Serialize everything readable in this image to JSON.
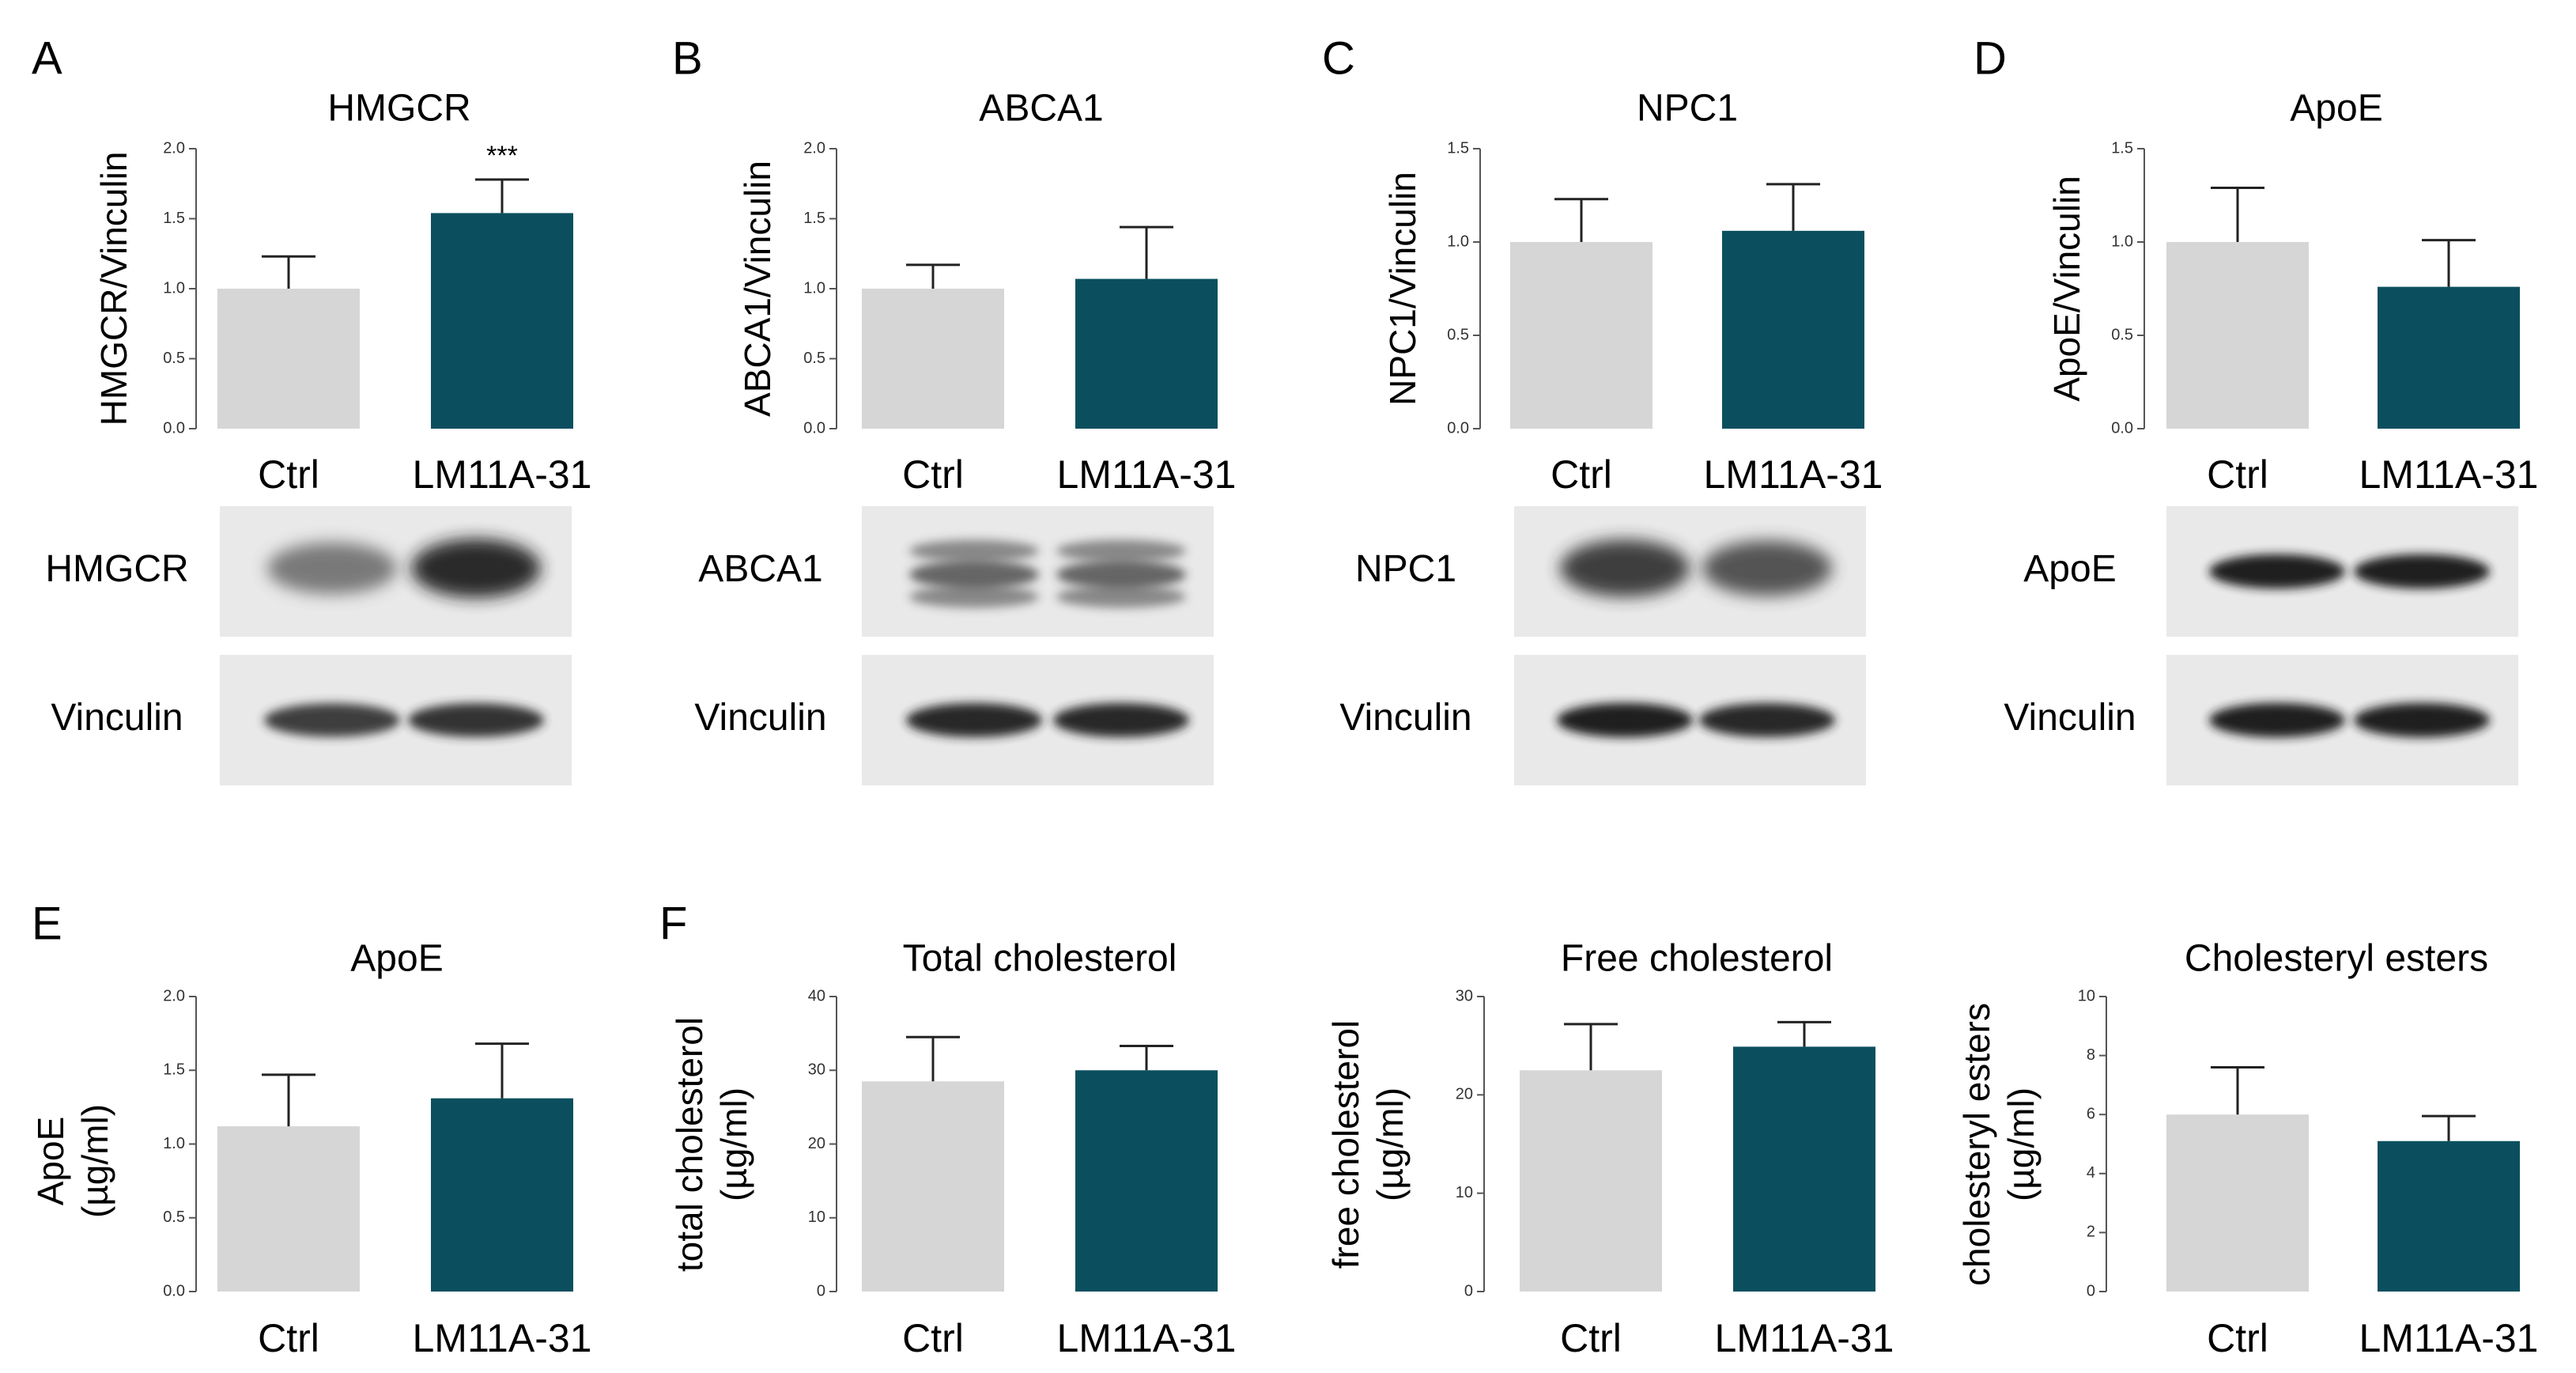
{
  "colors": {
    "ctrl": "#d6d6d6",
    "treated": "#0b4f5f",
    "axis": "#555555",
    "text": "#111111"
  },
  "chart_data": [
    {
      "panel": "A",
      "type": "bar",
      "title": "HMGCR",
      "ylabel_lines": [
        "HMGCR/Vinculin"
      ],
      "categories": [
        "Ctrl",
        "LM11A-31"
      ],
      "values": [
        1.0,
        1.54
      ],
      "errors": [
        0.23,
        0.24
      ],
      "ylim": [
        0,
        2.0
      ],
      "yticks": [
        "0.0",
        "0.5",
        "1.0",
        "1.5",
        "2.0"
      ],
      "significance": [
        "",
        "***"
      ]
    },
    {
      "panel": "B",
      "type": "bar",
      "title": "ABCA1",
      "ylabel_lines": [
        "ABCA1/Vinculin"
      ],
      "categories": [
        "Ctrl",
        "LM11A-31"
      ],
      "values": [
        1.0,
        1.07
      ],
      "errors": [
        0.17,
        0.37
      ],
      "ylim": [
        0,
        2.0
      ],
      "yticks": [
        "0.0",
        "0.5",
        "1.0",
        "1.5",
        "2.0"
      ]
    },
    {
      "panel": "C",
      "type": "bar",
      "title": "NPC1",
      "ylabel_lines": [
        "NPC1/Vinculin"
      ],
      "categories": [
        "Ctrl",
        "LM11A-31"
      ],
      "values": [
        1.0,
        1.06
      ],
      "errors": [
        0.23,
        0.25
      ],
      "ylim": [
        0,
        1.5
      ],
      "yticks": [
        "0.0",
        "0.5",
        "1.0",
        "1.5"
      ]
    },
    {
      "panel": "D",
      "type": "bar",
      "title": "ApoE",
      "ylabel_lines": [
        "ApoE/Vinculin"
      ],
      "categories": [
        "Ctrl",
        "LM11A-31"
      ],
      "values": [
        1.0,
        0.76
      ],
      "errors": [
        0.29,
        0.25
      ],
      "ylim": [
        0,
        1.5
      ],
      "yticks": [
        "0.0",
        "0.5",
        "1.0",
        "1.5"
      ]
    },
    {
      "panel": "E",
      "type": "bar",
      "title": "ApoE",
      "ylabel_lines": [
        "ApoE",
        "(µg/ml)"
      ],
      "categories": [
        "Ctrl",
        "LM11A-31"
      ],
      "values": [
        1.12,
        1.31
      ],
      "errors": [
        0.35,
        0.37
      ],
      "ylim": [
        0,
        2.0
      ],
      "yticks": [
        "0.0",
        "0.5",
        "1.0",
        "1.5",
        "2.0"
      ]
    },
    {
      "panel": "F",
      "type": "bar",
      "title": "Total cholesterol",
      "ylabel_lines": [
        "total cholesterol",
        "(µg/ml)"
      ],
      "categories": [
        "Ctrl",
        "LM11A-31"
      ],
      "values": [
        28.5,
        30.0
      ],
      "errors": [
        6.0,
        3.3
      ],
      "ylim": [
        0,
        40
      ],
      "yticks": [
        "0",
        "10",
        "20",
        "30",
        "40"
      ]
    },
    {
      "panel": "",
      "type": "bar",
      "title": "Free cholesterol",
      "ylabel_lines": [
        "free cholesterol",
        "(µg/ml)"
      ],
      "categories": [
        "Ctrl",
        "LM11A-31"
      ],
      "values": [
        22.5,
        24.9
      ],
      "errors": [
        4.7,
        2.5
      ],
      "ylim": [
        0,
        30
      ],
      "yticks": [
        "0",
        "10",
        "20",
        "30"
      ]
    },
    {
      "panel": "",
      "type": "bar",
      "title": "Cholesteryl esters",
      "ylabel_lines": [
        "cholesteryl esters",
        "(µg/ml)"
      ],
      "categories": [
        "Ctrl",
        "LM11A-31"
      ],
      "values": [
        6.0,
        5.1
      ],
      "errors": [
        1.6,
        0.85
      ],
      "ylim": [
        0,
        10
      ],
      "yticks": [
        "0",
        "2",
        "4",
        "6",
        "8",
        "10"
      ]
    }
  ],
  "blots": [
    {
      "panel": "A",
      "rows": [
        {
          "label": "HMGCR",
          "band": "diffuse",
          "intensities": [
            0.55,
            0.95
          ]
        },
        {
          "label": "Vinculin",
          "band": "band",
          "intensities": [
            0.8,
            0.85
          ]
        }
      ]
    },
    {
      "panel": "B",
      "rows": [
        {
          "label": "ABCA1",
          "band": "smear",
          "intensities": [
            0.75,
            0.75
          ]
        },
        {
          "label": "Vinculin",
          "band": "band",
          "intensities": [
            0.9,
            0.9
          ]
        }
      ]
    },
    {
      "panel": "C",
      "rows": [
        {
          "label": "NPC1",
          "band": "diffuse",
          "intensities": [
            0.85,
            0.75
          ]
        },
        {
          "label": "Vinculin",
          "band": "band",
          "intensities": [
            0.95,
            0.9
          ]
        }
      ]
    },
    {
      "panel": "D",
      "rows": [
        {
          "label": "ApoE",
          "band": "band",
          "intensities": [
            0.95,
            0.95
          ]
        },
        {
          "label": "Vinculin",
          "band": "band",
          "intensities": [
            0.95,
            0.95
          ]
        }
      ]
    }
  ]
}
